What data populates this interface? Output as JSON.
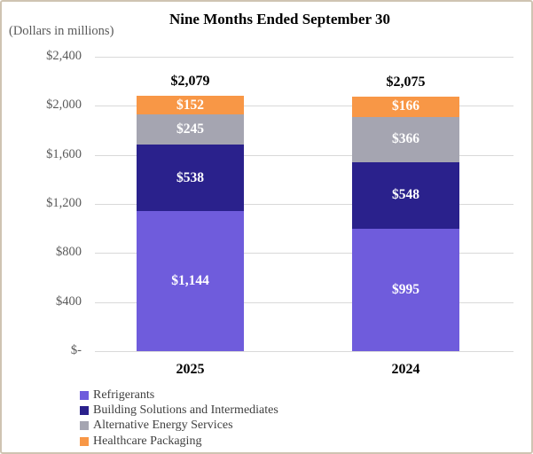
{
  "header": {
    "title": "Nine Months Ended September 30",
    "units_label": "(Dollars in millions)"
  },
  "chart_data": {
    "type": "bar",
    "stacked": true,
    "title": "Nine Months Ended September 30",
    "subtitle": "(Dollars in millions)",
    "categories": [
      "2025",
      "2024"
    ],
    "series": [
      {
        "name": "Refrigerants",
        "color": "#6F5CDC",
        "values": [
          1144,
          995
        ],
        "labels": [
          "$1,144",
          "$995"
        ]
      },
      {
        "name": "Building Solutions and Intermediates",
        "color": "#2A218C",
        "values": [
          538,
          548
        ],
        "labels": [
          "$538",
          "$548"
        ]
      },
      {
        "name": "Alternative Energy Services",
        "color": "#A5A5B1",
        "values": [
          245,
          366
        ],
        "labels": [
          "$245",
          "$366"
        ]
      },
      {
        "name": "Healthcare Packaging",
        "color": "#F89746",
        "values": [
          152,
          166
        ],
        "labels": [
          "$152",
          "$166"
        ]
      }
    ],
    "totals": [
      2079,
      2075
    ],
    "total_labels": [
      "$2,079",
      "$2,075"
    ],
    "y_axis": {
      "min": 0,
      "max": 2400,
      "tick_interval": 400,
      "tick_labels": [
        "$2,400",
        "$2,000",
        "$1,600",
        "$1,200",
        "$800",
        "$400",
        "$-"
      ]
    },
    "grid": true,
    "legend_position": "bottom-left",
    "colors": {
      "gridline": "#D9D9D9",
      "axis_text": "#595959",
      "segment_label_text": "#FFFFFF",
      "total_text": "#000000",
      "legend_text": "#404040",
      "frame_border": "#CFC4B2",
      "background": "#FFFFFF"
    }
  }
}
